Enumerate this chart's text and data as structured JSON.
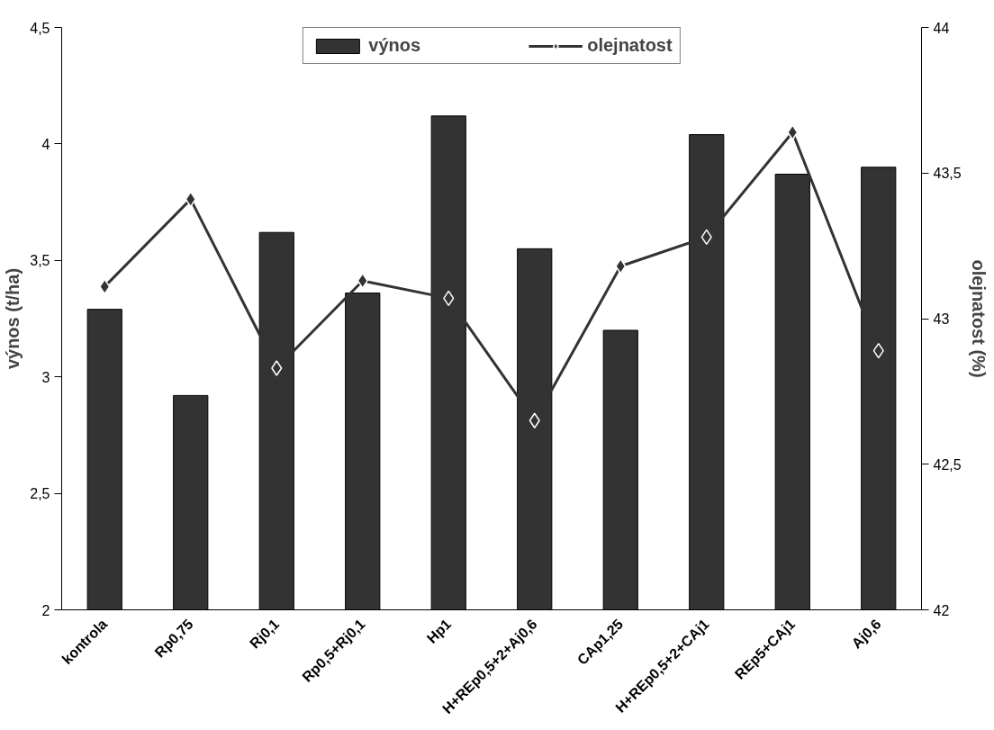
{
  "chart_data": {
    "type": "bar",
    "categories": [
      "kontrola",
      "Rp0,75",
      "Rj0,1",
      "Rp0,5+Rj0,1",
      "Hp1",
      "H+REp0,5+2+Aj0,6",
      "CAp1,25",
      "H+REp0,5+2+CAj1",
      "REp5+CAj1",
      "Aj0,6"
    ],
    "series": [
      {
        "name": "výnos",
        "color": "#333333",
        "values": [
          3.29,
          2.92,
          3.62,
          3.36,
          4.12,
          3.55,
          3.2,
          4.04,
          3.87,
          3.9
        ]
      },
      {
        "name": "olejnatost",
        "type": "line",
        "axis": "y2",
        "color": "#333333",
        "marker": "diamond",
        "values": [
          43.11,
          43.41,
          42.83,
          43.13,
          43.07,
          42.65,
          43.18,
          43.28,
          43.64,
          42.89
        ]
      }
    ],
    "ylabel": "výnos (t/ha)",
    "y2label": "olejnatost (%)",
    "ylim": [
      2,
      4.5
    ],
    "yticks": [
      2,
      {
        "value": 2.5,
        "label": "2,5"
      },
      3,
      {
        "value": 3.5,
        "label": "3,5"
      },
      4,
      {
        "value": 4.5,
        "label": "4,5"
      }
    ],
    "y2lim": [
      42,
      44
    ],
    "y2ticks": [
      42,
      {
        "value": 42.5,
        "label": "42,5"
      },
      43,
      {
        "value": 43.5,
        "label": "43,5"
      },
      44
    ],
    "grid": false,
    "legend": "top"
  }
}
